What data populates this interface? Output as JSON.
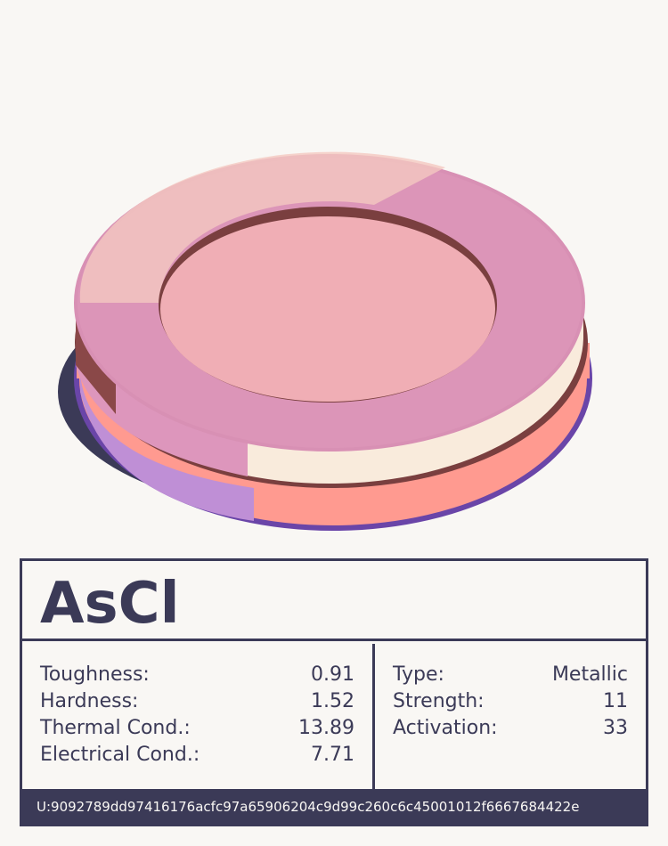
{
  "card": {
    "title": "AsCl",
    "left_stats": [
      {
        "label": "Toughness:",
        "value": "0.91"
      },
      {
        "label": "Hardness:",
        "value": "1.52"
      },
      {
        "label": "Thermal Cond.:",
        "value": "13.89"
      },
      {
        "label": "Electrical Cond.:",
        "value": "7.71"
      }
    ],
    "right_stats": [
      {
        "label": "Type:",
        "value": "Metallic"
      },
      {
        "label": "Strength:",
        "value": "11"
      },
      {
        "label": "Activation:",
        "value": "33"
      }
    ],
    "id": "U:9092789dd97416176acfc97a65906204c9d99c260c6c45001012f6667684422e"
  }
}
